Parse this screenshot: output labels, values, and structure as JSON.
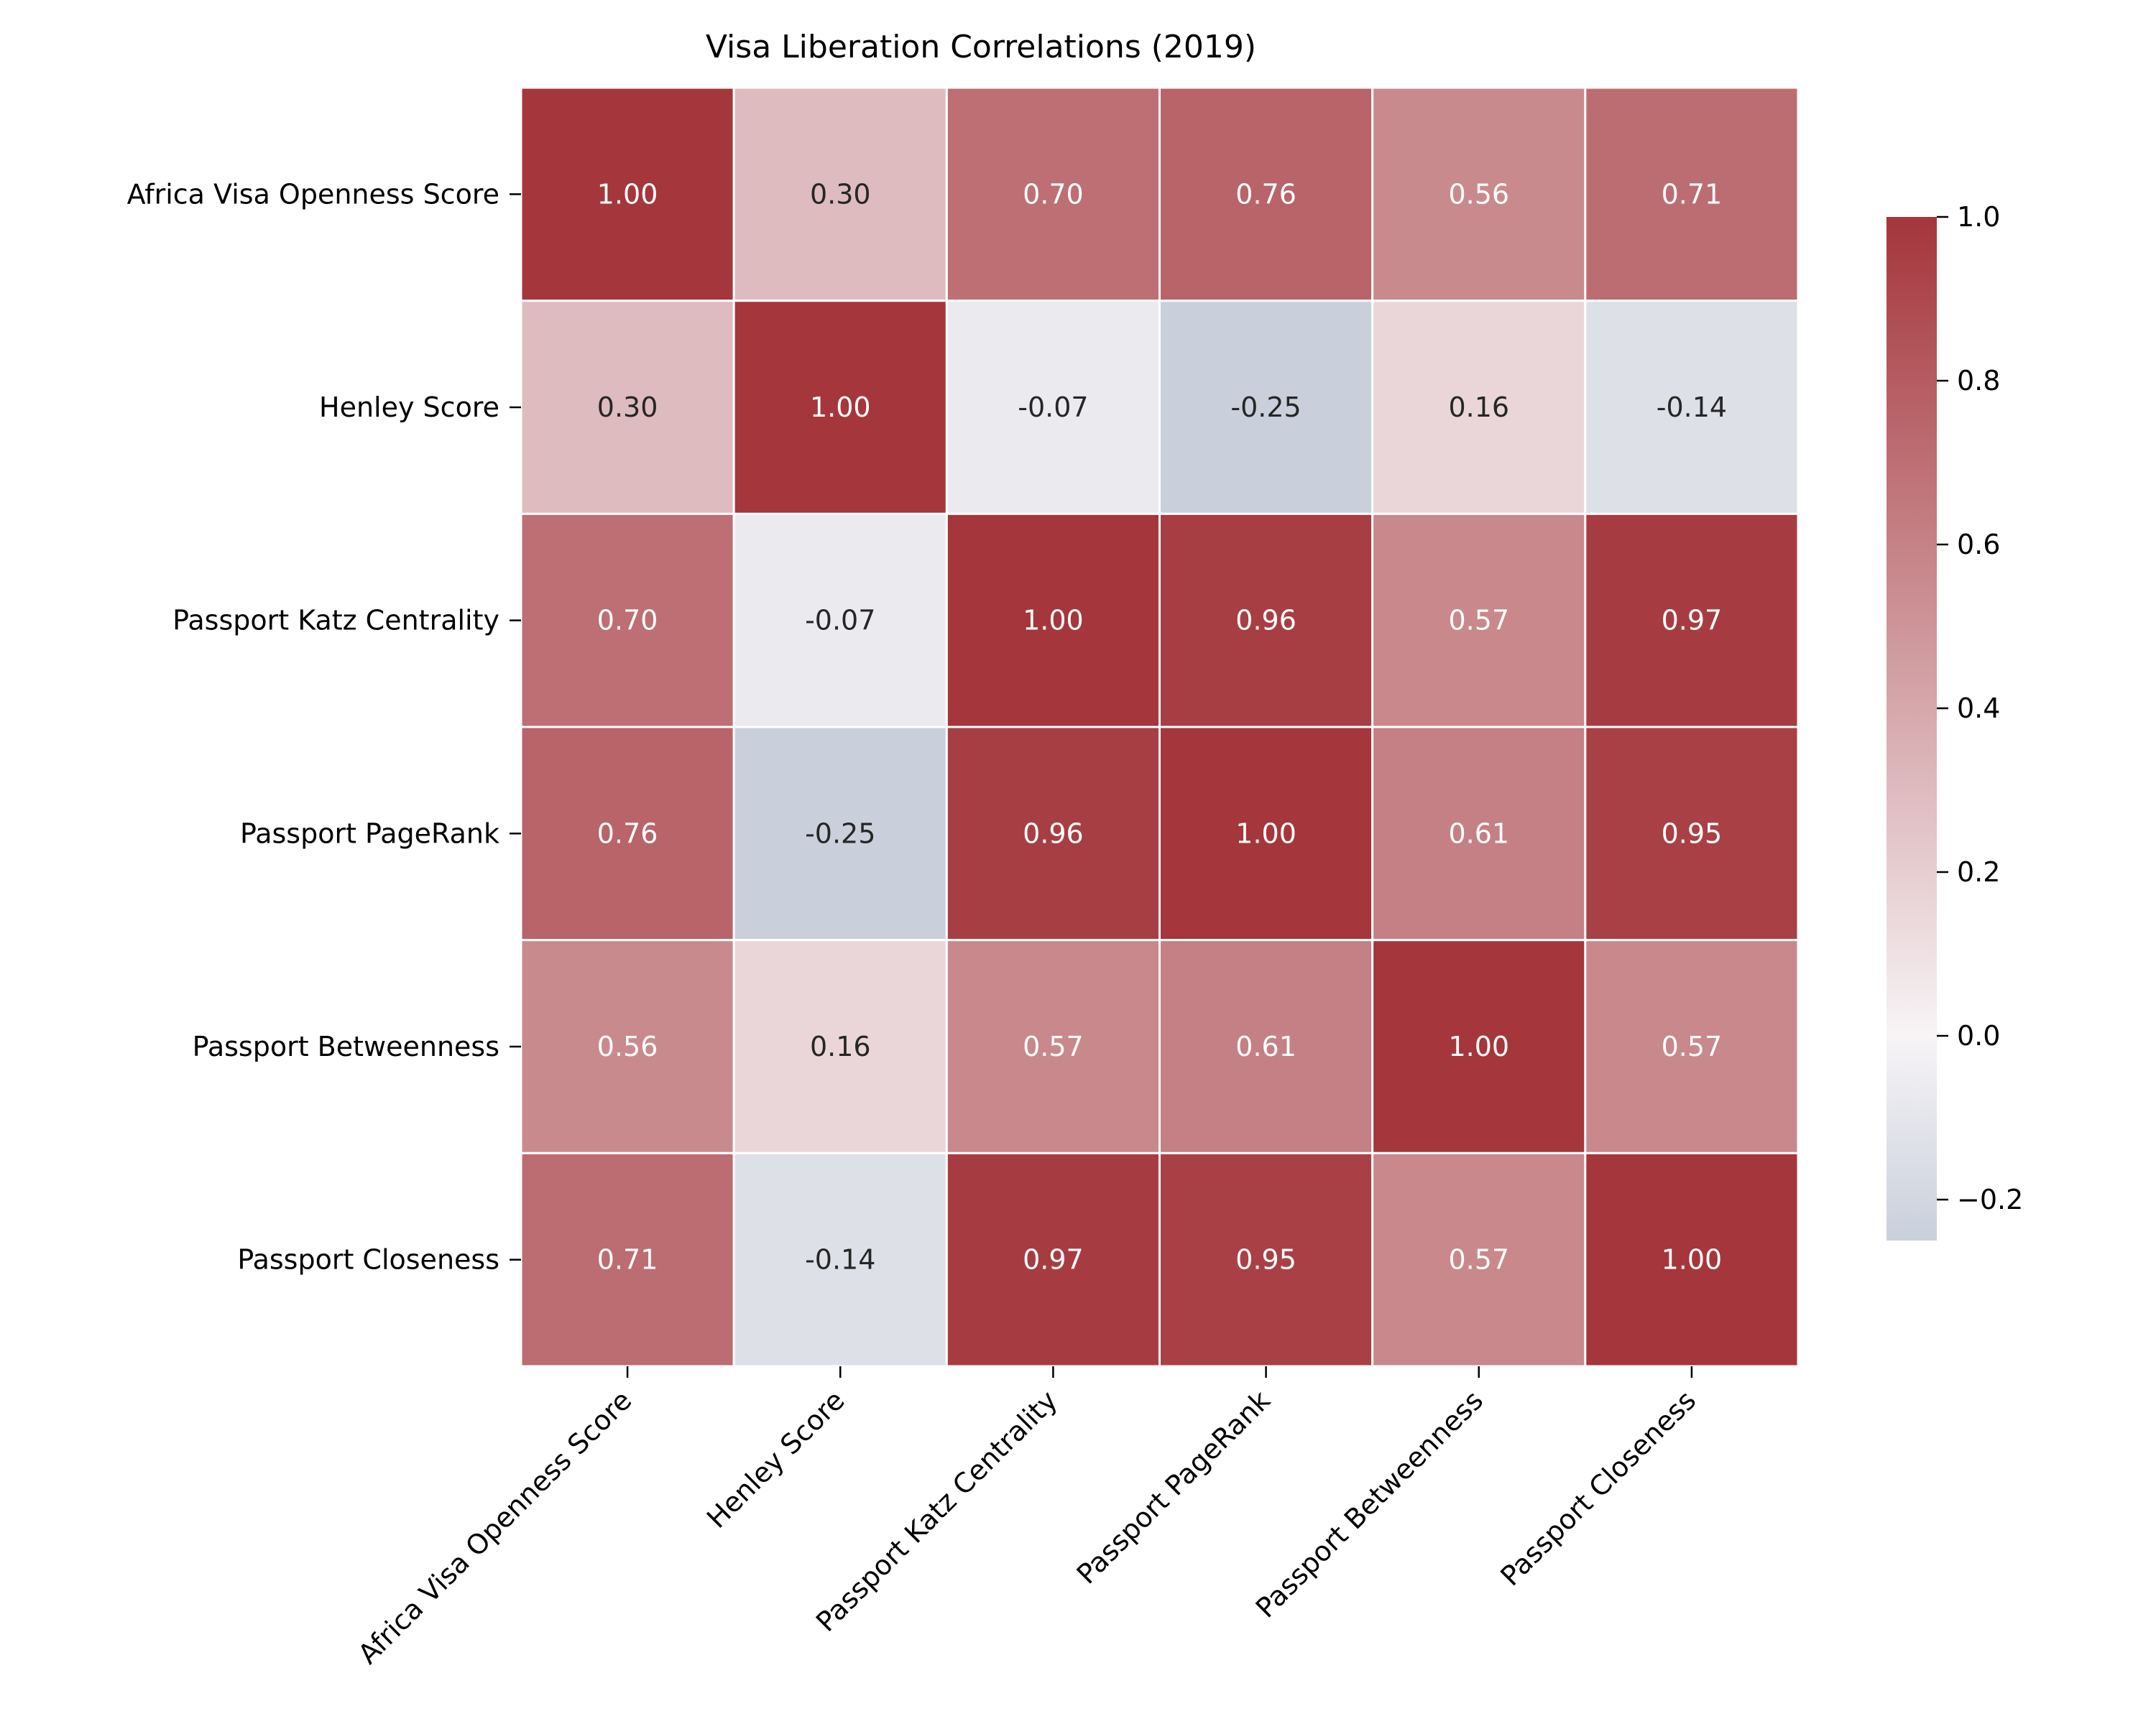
{
  "chart_data": {
    "type": "heatmap",
    "title": "Visa Liberation Correlations (2019)",
    "xlabel": "",
    "ylabel": "",
    "row_labels": [
      "Africa Visa Openness Score",
      "Henley Score",
      "Passport Katz Centrality",
      "Passport PageRank",
      "Passport Betweenness",
      "Passport Closeness"
    ],
    "col_labels": [
      "Africa Visa Openness Score",
      "Henley Score",
      "Passport Katz Centrality",
      "Passport PageRank",
      "Passport Betweenness",
      "Passport Closeness"
    ],
    "values": [
      [
        1.0,
        0.3,
        0.7,
        0.76,
        0.56,
        0.71
      ],
      [
        0.3,
        1.0,
        -0.07,
        -0.25,
        0.16,
        -0.14
      ],
      [
        0.7,
        -0.07,
        1.0,
        0.96,
        0.57,
        0.97
      ],
      [
        0.76,
        -0.25,
        0.96,
        1.0,
        0.61,
        0.95
      ],
      [
        0.56,
        0.16,
        0.57,
        0.61,
        1.0,
        0.57
      ],
      [
        0.71,
        -0.14,
        0.97,
        0.95,
        0.57,
        1.0
      ]
    ],
    "value_format": "0.00",
    "colorbar": {
      "min": -0.25,
      "max": 1.0,
      "ticks": [
        "1.0",
        "0.8",
        "0.6",
        "0.4",
        "0.2",
        "0.0",
        "−0.2"
      ],
      "tick_values": [
        1.0,
        0.8,
        0.6,
        0.4,
        0.2,
        0.0,
        -0.2
      ],
      "colors": {
        "negative": "#c9d0dc",
        "neutral": "#f7f4f6",
        "positive": "#a4363c"
      }
    },
    "grid": false,
    "colorbar_placement": "right"
  }
}
